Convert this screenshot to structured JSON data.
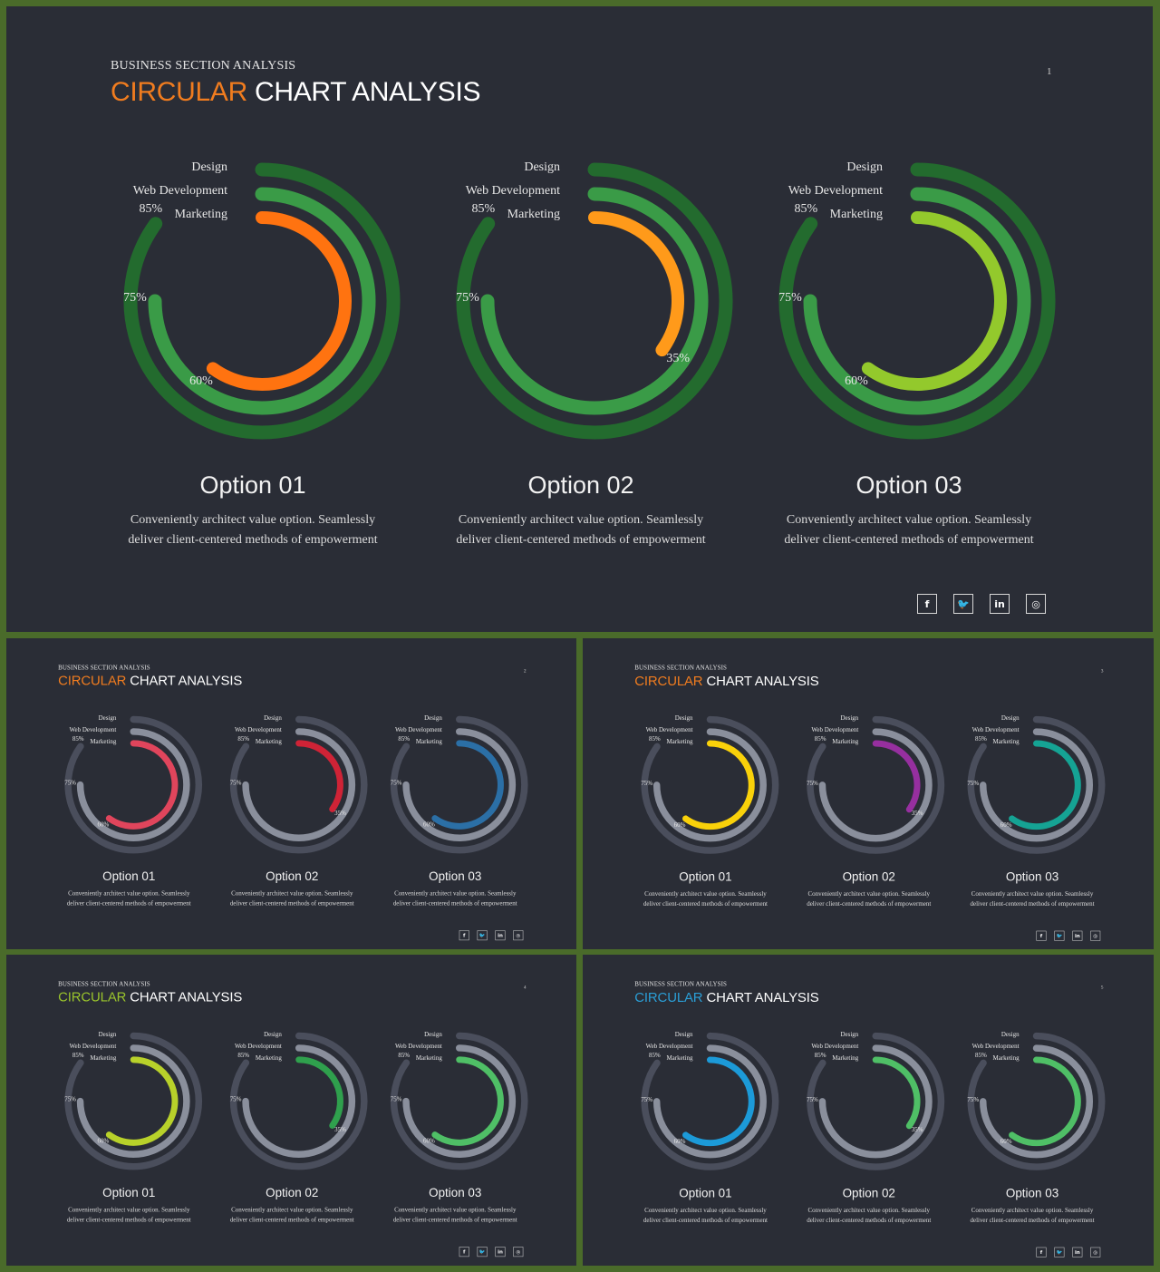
{
  "header": {
    "supertitle": "BUSINESS SECTION ANALYSIS",
    "title_accent": "CIRCULAR",
    "title_rest": "CHART ANALYSIS"
  },
  "options": [
    {
      "title": "Option 01",
      "desc_line1": "Conveniently architect value option. Seamlessly",
      "desc_line2": "deliver client-centered methods of empowerment"
    },
    {
      "title": "Option 02",
      "desc_line1": "Conveniently architect value option. Seamlessly",
      "desc_line2": "deliver client-centered methods of empowerment"
    },
    {
      "title": "Option 03",
      "desc_line1": "Conveniently architect value option. Seamlessly",
      "desc_line2": "deliver client-centered methods of empowerment"
    }
  ],
  "socials": [
    {
      "icon": "facebook-icon",
      "glyph": "f"
    },
    {
      "icon": "twitter-icon",
      "glyph": "🐦"
    },
    {
      "icon": "linkedin-icon",
      "glyph": "in"
    },
    {
      "icon": "instagram-icon",
      "glyph": "◎"
    }
  ],
  "slides": [
    {
      "page": "1",
      "accent_color": "#f07c1f",
      "outer_colors": [
        "#236b2e",
        "#3a9b47"
      ],
      "inner_colors": [
        "#ff7310",
        "#ff9a1a",
        "#93c92c"
      ]
    },
    {
      "page": "2",
      "accent_color": "#f07c1f",
      "outer_colors": [
        "#4a4e5c",
        "#8a8f9c"
      ],
      "inner_colors": [
        "#e0455c",
        "#cf2336",
        "#2b6fa6"
      ]
    },
    {
      "page": "3",
      "accent_color": "#f07c1f",
      "outer_colors": [
        "#4a4e5c",
        "#8a8f9c"
      ],
      "inner_colors": [
        "#f9d10a",
        "#962f9f",
        "#15a394"
      ]
    },
    {
      "page": "4",
      "accent_color": "#9ac42c",
      "outer_colors": [
        "#4a4e5c",
        "#8a8f9c"
      ],
      "inner_colors": [
        "#b8d12a",
        "#2fa04d",
        "#4fbf66"
      ]
    },
    {
      "page": "5",
      "accent_color": "#2a9ed6",
      "outer_colors": [
        "#4a4e5c",
        "#8a8f9c"
      ],
      "inner_colors": [
        "#1c9ad8",
        "#4fbf66",
        "#4fbf66"
      ]
    }
  ],
  "chart_data": [
    {
      "type": "radial-bar",
      "title": "Option 01",
      "categories": [
        "Design",
        "Web Development",
        "Marketing"
      ],
      "values": [
        85,
        75,
        60
      ],
      "value_labels": [
        "85%",
        "75%",
        "60%"
      ]
    },
    {
      "type": "radial-bar",
      "title": "Option 02",
      "categories": [
        "Design",
        "Web Development",
        "Marketing"
      ],
      "values": [
        85,
        75,
        35
      ],
      "value_labels": [
        "85%",
        "75%",
        "35%"
      ]
    },
    {
      "type": "radial-bar",
      "title": "Option 03",
      "categories": [
        "Design",
        "Web Development",
        "Marketing"
      ],
      "values": [
        85,
        75,
        60
      ],
      "value_labels": [
        "85%",
        "75%",
        "60%"
      ]
    }
  ]
}
